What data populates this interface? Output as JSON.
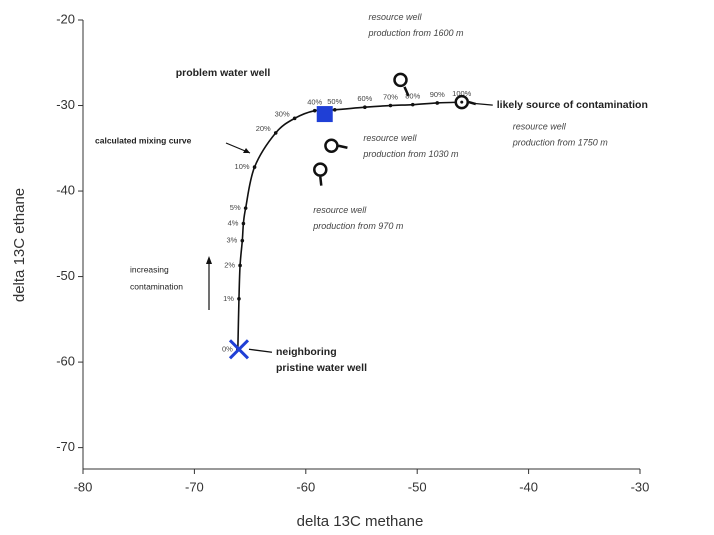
{
  "chart_data": {
    "type": "line",
    "x_label": "delta 13C methane",
    "y_label": "delta 13C ethane",
    "xlim": [
      -80,
      -30
    ],
    "ylim": [
      -72.5,
      -20
    ],
    "xticks": [
      -80,
      -70,
      -60,
      -50,
      -40,
      -30
    ],
    "yticks": [
      -20,
      -30,
      -40,
      -50,
      -60,
      -70
    ],
    "series": [
      {
        "name": "calculated mixing curve",
        "color": "#111111",
        "x": [
          -66.1,
          -66.0,
          -65.9,
          -65.7,
          -65.6,
          -65.4,
          -64.6,
          -62.7,
          -61.0,
          -59.2,
          -57.4,
          -54.7,
          -52.4,
          -50.4,
          -48.2,
          -46.0
        ],
        "values": [
          -58.5,
          -52.6,
          -48.7,
          -45.8,
          -43.8,
          -42.0,
          -37.2,
          -33.2,
          -31.5,
          -30.6,
          -30.5,
          -30.2,
          -30.0,
          -29.9,
          -29.7,
          -29.6
        ],
        "point_labels": [
          "0%",
          "1%",
          "2%",
          "3%",
          "4%",
          "5%",
          "10%",
          "20%",
          "30%",
          "40%",
          "50%",
          "60%",
          "70%",
          "80%",
          "90%",
          "100%"
        ]
      }
    ],
    "points": [
      {
        "marker": "square",
        "color": "#1f3fd6",
        "x": -58.3,
        "y": -31.0,
        "label_lines": [
          "problem water well"
        ],
        "label_bold": true
      },
      {
        "marker": "cross",
        "color": "#1f3fd6",
        "x": -66.0,
        "y": -58.5,
        "label_lines": [
          "neighboring",
          "pristine water well"
        ],
        "label_bold": true
      },
      {
        "marker": "circle",
        "color": "#111111",
        "x": -51.5,
        "y": -27.0,
        "label_lines": [
          "resource well",
          "production from 1600 m"
        ],
        "label_bold": false
      },
      {
        "marker": "circle",
        "color": "#111111",
        "x": -57.7,
        "y": -34.7,
        "label_lines": [
          "resource well",
          "production from 1030 m"
        ],
        "label_bold": false
      },
      {
        "marker": "circle",
        "color": "#111111",
        "x": -58.7,
        "y": -37.5,
        "label_lines": [
          "resource well",
          "production from 970 m"
        ],
        "label_bold": false
      },
      {
        "marker": "circle",
        "color": "#111111",
        "x": -46.0,
        "y": -29.6,
        "label_lines": [
          "likely source of contamination"
        ],
        "label_bold": true,
        "note_lines": [
          "resource well",
          "production from 1750 m"
        ]
      }
    ],
    "annotations": [
      {
        "text_lines": [
          "calculated mixing curve"
        ]
      },
      {
        "text_lines": [
          "increasing",
          "contamination"
        ]
      }
    ]
  }
}
